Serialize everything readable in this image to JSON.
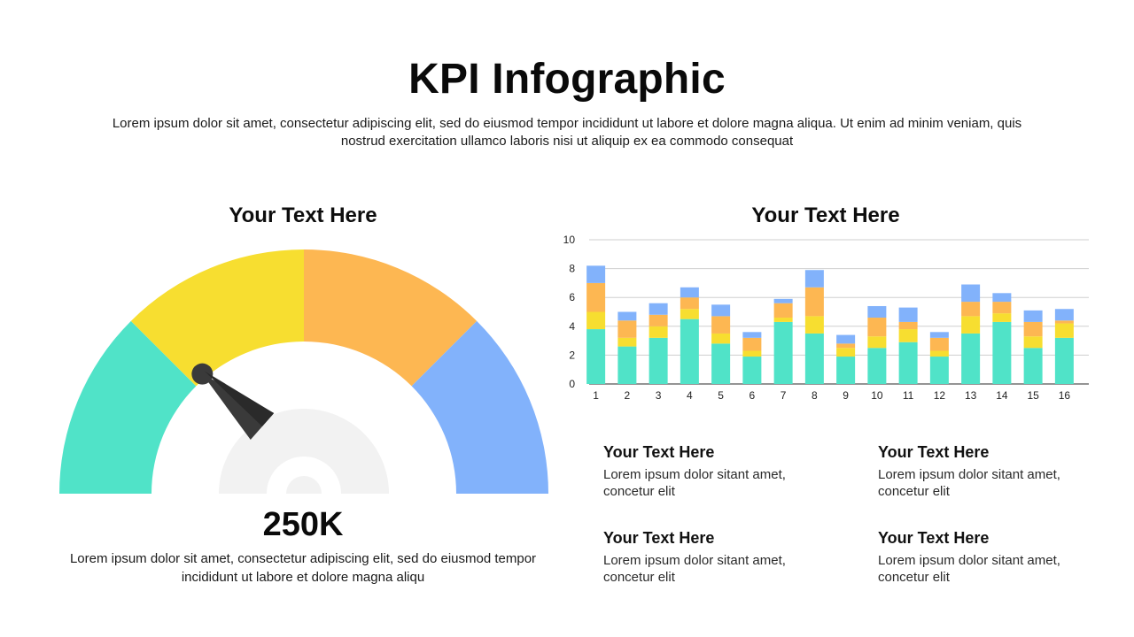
{
  "header": {
    "title": "KPI Infographic",
    "intro": "Lorem ipsum dolor sit amet, consectetur adipiscing elit, sed do eiusmod tempor incididunt ut labore et dolore magna aliqua. Ut enim ad minim veniam, quis nostrud exercitation ullamco laboris nisi ut aliquip ex ea commodo consequat"
  },
  "gauge": {
    "heading": "Your Text Here",
    "value": "250K",
    "description": "Lorem ipsum dolor sit amet, consectetur adipiscing elit, sed do eiusmod tempor incididunt ut labore et dolore magna aliqu",
    "segments": [
      "#50E3C8",
      "#F7DE30",
      "#FDB752",
      "#82B2FB"
    ],
    "needle_fraction": 0.2
  },
  "chart": {
    "heading": "Your Text Here"
  },
  "chart_data": {
    "type": "bar",
    "stacked": true,
    "categories": [
      "1",
      "2",
      "3",
      "4",
      "5",
      "6",
      "7",
      "8",
      "9",
      "10",
      "11",
      "12",
      "13",
      "14",
      "15",
      "16"
    ],
    "ylim": [
      0,
      10
    ],
    "yticks": [
      "0",
      "2",
      "4",
      "6",
      "8",
      "10"
    ],
    "grid": true,
    "series": [
      {
        "color": "#50E3C8",
        "values": [
          3.8,
          2.6,
          3.2,
          4.5,
          2.8,
          1.9,
          4.3,
          3.5,
          1.9,
          2.5,
          2.9,
          1.9,
          3.5,
          4.3,
          2.5,
          3.2
        ]
      },
      {
        "color": "#F7DE30",
        "values": [
          1.2,
          0.6,
          0.8,
          0.7,
          0.7,
          0.4,
          0.3,
          1.2,
          0.6,
          0.8,
          0.9,
          0.4,
          1.2,
          0.6,
          0.8,
          1.0
        ]
      },
      {
        "color": "#FDB752",
        "values": [
          2.0,
          1.2,
          0.8,
          0.8,
          1.2,
          0.9,
          1.0,
          2.0,
          0.3,
          1.3,
          0.5,
          0.9,
          1.0,
          0.8,
          1.0,
          0.2
        ]
      },
      {
        "color": "#82B2FB",
        "values": [
          1.2,
          0.6,
          0.8,
          0.7,
          0.8,
          0.4,
          0.3,
          1.2,
          0.6,
          0.8,
          1.0,
          0.4,
          1.2,
          0.6,
          0.8,
          0.8
        ]
      }
    ]
  },
  "cards": [
    {
      "title": "Your Text Here",
      "text": "Lorem ipsum dolor sitant amet, concetur elit"
    },
    {
      "title": "Your Text Here",
      "text": "Lorem ipsum dolor sitant amet, concetur elit"
    },
    {
      "title": "Your Text Here",
      "text": "Lorem ipsum dolor sitant amet, concetur elit"
    },
    {
      "title": "Your Text Here",
      "text": "Lorem ipsum dolor sitant amet, concetur elit"
    }
  ]
}
